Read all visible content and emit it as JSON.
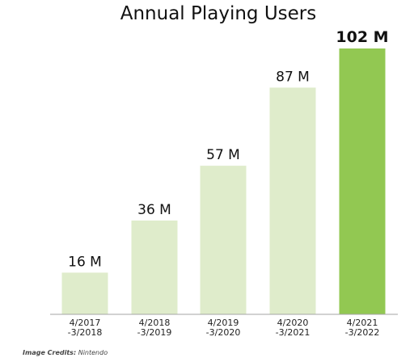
{
  "chart_data": {
    "type": "bar",
    "title": "Annual Playing Users",
    "categories": [
      [
        "4/2017",
        "-3/2018"
      ],
      [
        "4/2018",
        "-3/2019"
      ],
      [
        "4/2019",
        "-3/2020"
      ],
      [
        "4/2020",
        "-3/2021"
      ],
      [
        "4/2021",
        "-3/2022"
      ]
    ],
    "values": [
      16,
      36,
      57,
      87,
      102
    ],
    "value_labels": [
      "16 M",
      "36 M",
      "57 M",
      "87 M",
      "102 M"
    ],
    "highlight_index": 4,
    "colors": {
      "bar": "#dfeccb",
      "highlight": "#92c852",
      "axis": "#a6a6a6",
      "text": "#111111"
    },
    "ylim": [
      0,
      102
    ],
    "xlabel": "",
    "ylabel": "",
    "grid": false,
    "legend": "none"
  },
  "credit": {
    "label": "Image Credits:",
    "source": "Nintendo"
  }
}
